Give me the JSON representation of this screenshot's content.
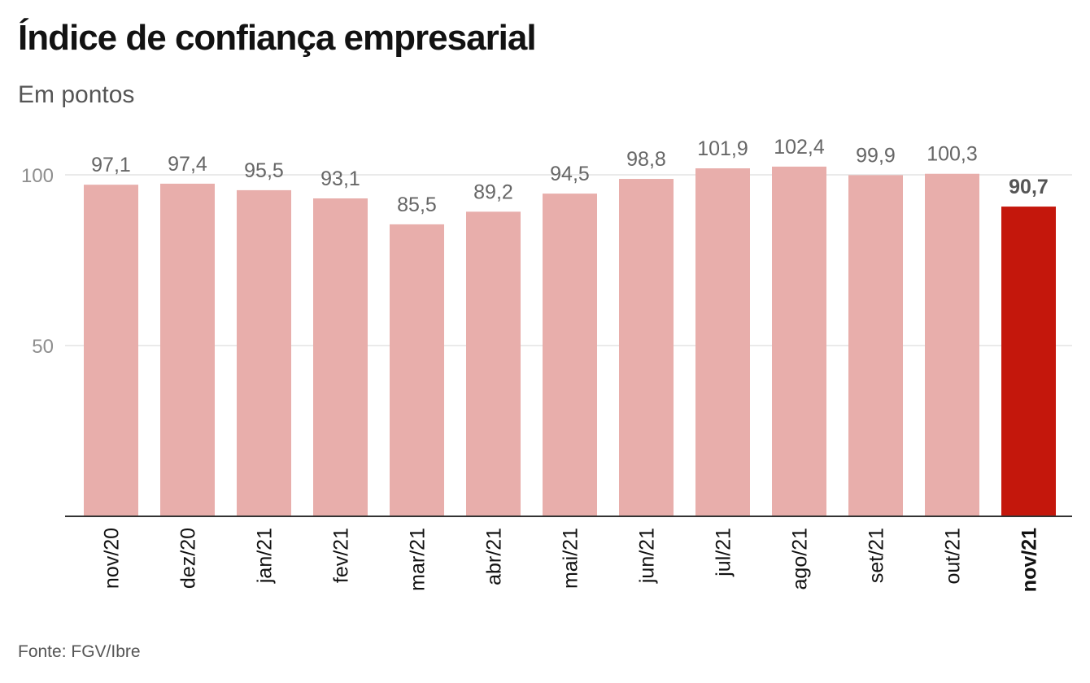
{
  "header": {
    "title": "Índice de confiança empresarial",
    "subtitle": "Em pontos"
  },
  "footer": {
    "source": "Fonte: FGV/Ibre"
  },
  "chart_data": {
    "type": "bar",
    "title": "Índice de confiança empresarial",
    "subtitle": "Em pontos",
    "xlabel": "",
    "ylabel": "",
    "categories": [
      "nov/20",
      "dez/20",
      "jan/21",
      "fev/21",
      "mar/21",
      "abr/21",
      "mai/21",
      "jun/21",
      "jul/21",
      "ago/21",
      "set/21",
      "out/21",
      "nov/21"
    ],
    "values": [
      97.1,
      97.4,
      95.5,
      93.1,
      85.5,
      89.2,
      94.5,
      98.8,
      101.9,
      102.4,
      99.9,
      100.3,
      90.7
    ],
    "value_labels": [
      "97,1",
      "97,4",
      "95,5",
      "93,1",
      "85,5",
      "89,2",
      "94,5",
      "98,8",
      "101,9",
      "102,4",
      "99,9",
      "100,3",
      "90,7"
    ],
    "highlight_index": 12,
    "ylim": [
      0,
      110
    ],
    "yticks": [
      50,
      100
    ],
    "grid": true,
    "legend": "none",
    "colors": {
      "bar": "#e8aeab",
      "highlight": "#c4170c",
      "grid": "#e3e3e3",
      "axis": "#333333"
    }
  }
}
